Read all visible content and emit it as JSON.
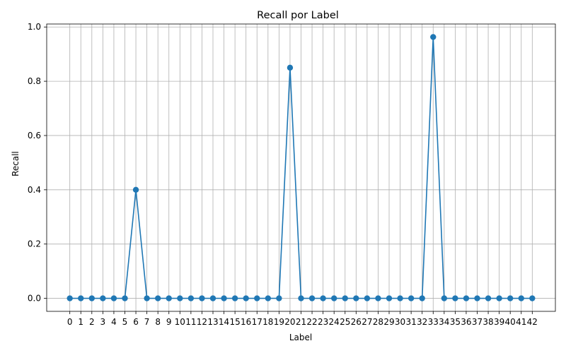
{
  "chart_data": {
    "type": "line",
    "title": "Recall por Label",
    "xlabel": "Label",
    "ylabel": "Recall",
    "x": [
      0,
      1,
      2,
      3,
      4,
      5,
      6,
      7,
      8,
      9,
      10,
      11,
      12,
      13,
      14,
      15,
      16,
      17,
      18,
      19,
      20,
      21,
      22,
      23,
      24,
      25,
      26,
      27,
      28,
      29,
      30,
      31,
      32,
      33,
      34,
      35,
      36,
      37,
      38,
      39,
      40,
      41,
      42
    ],
    "x_tick_labels": [
      "0",
      "1",
      "2",
      "3",
      "4",
      "5",
      "6",
      "7",
      "8",
      "9",
      "10",
      "11",
      "12",
      "13",
      "14",
      "15",
      "16",
      "17",
      "18",
      "19",
      "20",
      "21",
      "22",
      "23",
      "24",
      "25",
      "26",
      "27",
      "28",
      "29",
      "30",
      "31",
      "32",
      "33",
      "34",
      "35",
      "36",
      "37",
      "38",
      "39",
      "40",
      "41",
      "42"
    ],
    "values": [
      0,
      0,
      0,
      0,
      0,
      0,
      0.4,
      0,
      0,
      0,
      0,
      0,
      0,
      0,
      0,
      0,
      0,
      0,
      0,
      0,
      0.85,
      0,
      0,
      0,
      0,
      0,
      0,
      0,
      0,
      0,
      0,
      0,
      0,
      0.963,
      0,
      0,
      0,
      0,
      0,
      0,
      0,
      0,
      0
    ],
    "y_ticks": [
      0.0,
      0.2,
      0.4,
      0.6,
      0.8,
      1.0
    ],
    "y_tick_labels": [
      "0.0",
      "0.2",
      "0.4",
      "0.6",
      "0.8",
      "1.0"
    ],
    "xlim": [
      -2.1,
      44.1
    ],
    "ylim": [
      -0.048,
      1.011
    ],
    "grid": true,
    "marker": "circle",
    "line_color": "#1f77b4"
  }
}
